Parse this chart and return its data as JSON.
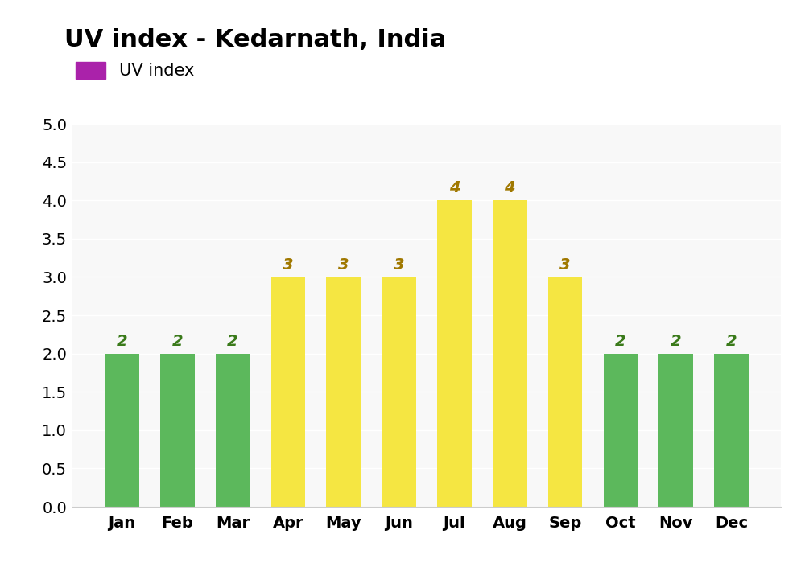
{
  "title": "UV index - Kedarnath, India",
  "legend_label": "UV index",
  "legend_color": "#aa22aa",
  "months": [
    "Jan",
    "Feb",
    "Mar",
    "Apr",
    "May",
    "Jun",
    "Jul",
    "Aug",
    "Sep",
    "Oct",
    "Nov",
    "Dec"
  ],
  "values": [
    2,
    2,
    2,
    3,
    3,
    3,
    4,
    4,
    3,
    2,
    2,
    2
  ],
  "bar_colors": [
    "#5cb85c",
    "#5cb85c",
    "#5cb85c",
    "#f5e642",
    "#f5e642",
    "#f5e642",
    "#f5e642",
    "#f5e642",
    "#f5e642",
    "#5cb85c",
    "#5cb85c",
    "#5cb85c"
  ],
  "label_colors": [
    "#3a7a1a",
    "#3a7a1a",
    "#3a7a1a",
    "#a07800",
    "#a07800",
    "#a07800",
    "#a07800",
    "#a07800",
    "#a07800",
    "#3a7a1a",
    "#3a7a1a",
    "#3a7a1a"
  ],
  "ylim": [
    0,
    5.0
  ],
  "yticks": [
    0.0,
    0.5,
    1.0,
    1.5,
    2.0,
    2.5,
    3.0,
    3.5,
    4.0,
    4.5,
    5.0
  ],
  "ytick_labels": [
    "0.0",
    "0.5",
    "1.0",
    "1.5",
    "2.0",
    "2.5",
    "3.0",
    "3.5",
    "4.0",
    "4.5",
    "5.0"
  ],
  "background_color": "#ffffff",
  "plot_bg_color": "#f8f8f8",
  "title_fontsize": 22,
  "tick_fontsize": 14,
  "label_fontsize": 15,
  "bar_label_fontsize": 14,
  "bar_width": 0.62
}
